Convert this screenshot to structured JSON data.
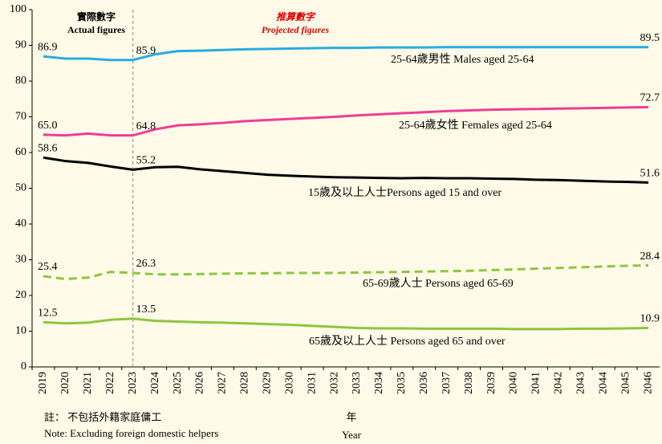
{
  "chart_data": {
    "type": "line",
    "annotations": {
      "actual_zh": "實際數字",
      "actual_en": "Actual figures",
      "projected_zh": "推算數字",
      "projected_en": "Projected figures"
    },
    "note_zh": "註： 不包括外籍家庭傭工",
    "note_en": "Note: Excluding foreign domestic helpers",
    "x_label_zh": "年",
    "x_label_en": "Year",
    "categories": [
      "2019",
      "2020",
      "2021",
      "2022",
      "2023",
      "2024",
      "2025",
      "2026",
      "2027",
      "2028",
      "2029",
      "2030",
      "2031",
      "2032",
      "2033",
      "2034",
      "2035",
      "2036",
      "2037",
      "2038",
      "2039",
      "2040",
      "2041",
      "2042",
      "2043",
      "2044",
      "2045",
      "2046"
    ],
    "divider_category": "2023",
    "ylim": [
      0,
      100
    ],
    "yticks": [
      0,
      10,
      20,
      30,
      40,
      50,
      60,
      70,
      80,
      90,
      100
    ],
    "series": [
      {
        "name": "25-64歲男性 Males aged 25-64",
        "color": "#29abe2",
        "dash": false,
        "values": [
          86.9,
          86.3,
          86.3,
          85.9,
          85.9,
          87.5,
          88.4,
          88.5,
          88.7,
          88.9,
          89.0,
          89.1,
          89.2,
          89.3,
          89.3,
          89.4,
          89.4,
          89.4,
          89.5,
          89.5,
          89.5,
          89.5,
          89.5,
          89.5,
          89.5,
          89.5,
          89.5,
          89.5
        ],
        "value_labels": [
          "86.9",
          null,
          null,
          null,
          "85.9",
          null,
          null,
          null,
          null,
          null,
          null,
          null,
          null,
          null,
          null,
          null,
          null,
          null,
          null,
          null,
          null,
          null,
          null,
          null,
          null,
          null,
          null,
          "89.5"
        ]
      },
      {
        "name": "25-64歲女性 Females aged 25-64",
        "color": "#ee3d96",
        "dash": false,
        "values": [
          65.0,
          64.8,
          65.3,
          64.8,
          64.8,
          66.5,
          67.6,
          67.9,
          68.3,
          68.8,
          69.1,
          69.4,
          69.7,
          70.0,
          70.4,
          70.7,
          71.0,
          71.3,
          71.6,
          71.8,
          72.0,
          72.1,
          72.2,
          72.3,
          72.4,
          72.5,
          72.6,
          72.7
        ],
        "value_labels": [
          "65.0",
          null,
          null,
          null,
          "64.8",
          null,
          null,
          null,
          null,
          null,
          null,
          null,
          null,
          null,
          null,
          null,
          null,
          null,
          null,
          null,
          null,
          null,
          null,
          null,
          null,
          null,
          null,
          "72.7"
        ]
      },
      {
        "name": "15歲及以上人士Persons aged 15 and over",
        "color": "#000000",
        "dash": false,
        "values": [
          58.6,
          57.6,
          57.1,
          56.1,
          55.2,
          55.9,
          56.0,
          55.3,
          54.8,
          54.3,
          53.8,
          53.5,
          53.3,
          53.1,
          53.0,
          52.9,
          52.8,
          52.9,
          52.8,
          52.8,
          52.7,
          52.6,
          52.4,
          52.3,
          52.1,
          51.9,
          51.8,
          51.6
        ],
        "value_labels": [
          "58.6",
          null,
          null,
          null,
          "55.2",
          null,
          null,
          null,
          null,
          null,
          null,
          null,
          null,
          null,
          null,
          null,
          null,
          null,
          null,
          null,
          null,
          null,
          null,
          null,
          null,
          null,
          null,
          "51.6"
        ]
      },
      {
        "name": "65-69歲人士 Persons aged 65-69",
        "color": "#8dc63f",
        "dash": true,
        "values": [
          25.4,
          24.6,
          25.0,
          26.6,
          26.3,
          25.9,
          25.9,
          26.0,
          26.1,
          26.2,
          26.2,
          26.3,
          26.3,
          26.3,
          26.4,
          26.5,
          26.6,
          26.7,
          26.8,
          26.9,
          27.1,
          27.3,
          27.5,
          27.7,
          27.9,
          28.1,
          28.3,
          28.4
        ],
        "value_labels": [
          "25.4",
          null,
          null,
          null,
          "26.3",
          null,
          null,
          null,
          null,
          null,
          null,
          null,
          null,
          null,
          null,
          null,
          null,
          null,
          null,
          null,
          null,
          null,
          null,
          null,
          null,
          null,
          null,
          "28.4"
        ]
      },
      {
        "name": "65歲及以上人士 Persons aged 65 and over",
        "color": "#8dc63f",
        "dash": false,
        "values": [
          12.5,
          12.2,
          12.4,
          13.2,
          13.5,
          12.9,
          12.7,
          12.5,
          12.4,
          12.2,
          12.0,
          11.8,
          11.5,
          11.2,
          10.9,
          10.8,
          10.8,
          10.7,
          10.7,
          10.7,
          10.7,
          10.6,
          10.6,
          10.6,
          10.7,
          10.7,
          10.8,
          10.9
        ],
        "value_labels": [
          "12.5",
          null,
          null,
          null,
          "13.5",
          null,
          null,
          null,
          null,
          null,
          null,
          null,
          null,
          null,
          null,
          null,
          null,
          null,
          null,
          null,
          null,
          null,
          null,
          null,
          null,
          null,
          null,
          "10.9"
        ]
      }
    ]
  }
}
